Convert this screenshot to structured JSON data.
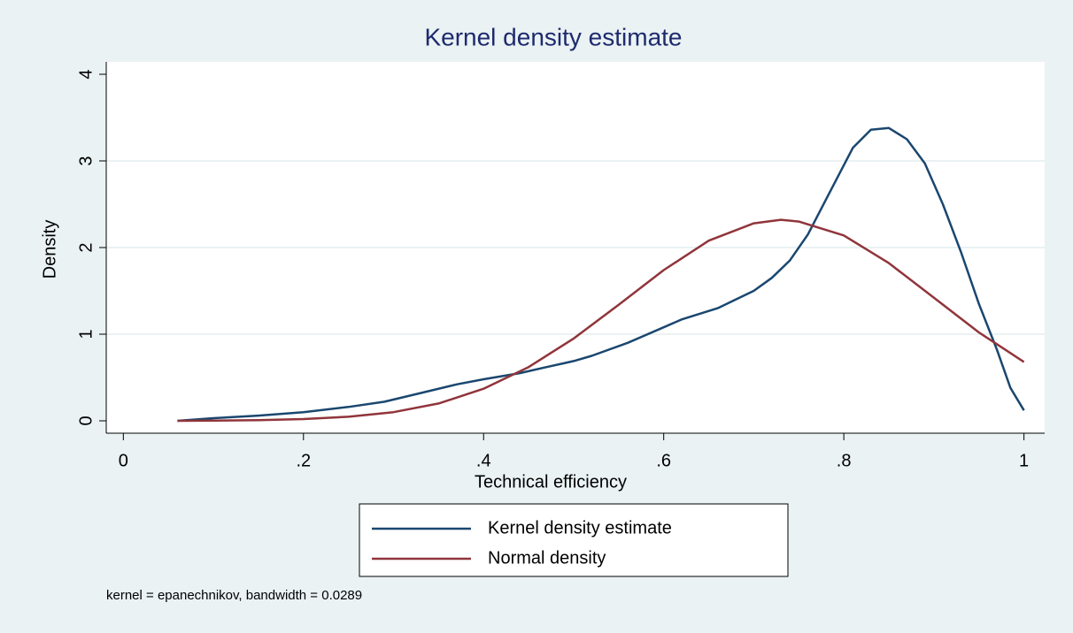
{
  "chart_data": {
    "type": "line",
    "title": "Kernel density estimate",
    "xlabel": "Technical efficiency",
    "ylabel": "Density",
    "note": "kernel = epanechnikov, bandwidth = 0.0289",
    "xlim": [
      -0.019,
      1.023
    ],
    "ylim": [
      -0.143,
      4.143
    ],
    "xticks": [
      0,
      {
        "value": 0.2,
        "label": ".2"
      },
      {
        "value": 0.4,
        "label": ".4"
      },
      {
        "value": 0.6,
        "label": ".6"
      },
      {
        "value": 0.8,
        "label": ".8"
      },
      1
    ],
    "yticks": [
      0,
      1,
      2,
      3,
      4
    ],
    "grid": true,
    "series": [
      {
        "name": "Kernel density estimate",
        "color": "#1a476f",
        "x": [
          0.06,
          0.1,
          0.15,
          0.2,
          0.25,
          0.29,
          0.33,
          0.37,
          0.4,
          0.44,
          0.47,
          0.5,
          0.52,
          0.56,
          0.6,
          0.62,
          0.66,
          0.68,
          0.7,
          0.72,
          0.74,
          0.76,
          0.78,
          0.8,
          0.81,
          0.83,
          0.85,
          0.87,
          0.89,
          0.91,
          0.93,
          0.95,
          0.97,
          0.985,
          1.0
        ],
        "values": [
          0.0,
          0.03,
          0.06,
          0.1,
          0.16,
          0.22,
          0.32,
          0.42,
          0.48,
          0.55,
          0.62,
          0.69,
          0.75,
          0.9,
          1.08,
          1.17,
          1.3,
          1.4,
          1.5,
          1.65,
          1.85,
          2.15,
          2.55,
          2.95,
          3.15,
          3.36,
          3.38,
          3.25,
          2.97,
          2.5,
          1.95,
          1.35,
          0.82,
          0.38,
          0.12
        ]
      },
      {
        "name": "Normal density",
        "color": "#90353b",
        "x": [
          0.06,
          0.1,
          0.15,
          0.2,
          0.25,
          0.3,
          0.35,
          0.4,
          0.45,
          0.5,
          0.55,
          0.6,
          0.65,
          0.7,
          0.73,
          0.75,
          0.8,
          0.85,
          0.9,
          0.95,
          1.0
        ],
        "values": [
          0.0,
          0.003,
          0.008,
          0.02,
          0.047,
          0.1,
          0.2,
          0.37,
          0.62,
          0.95,
          1.34,
          1.74,
          2.08,
          2.28,
          2.32,
          2.3,
          2.14,
          1.82,
          1.42,
          1.02,
          0.68
        ]
      }
    ]
  }
}
